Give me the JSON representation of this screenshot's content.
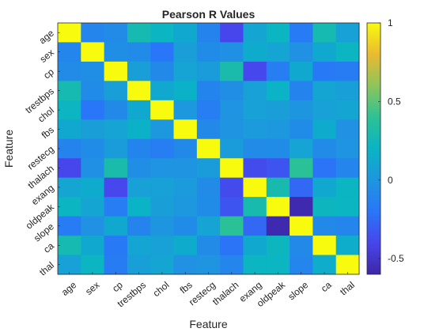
{
  "chart_data": {
    "type": "heatmap",
    "title": "Pearson R Values",
    "xlabel": "Feature",
    "ylabel": "Feature",
    "labels": [
      "age",
      "sex",
      "cp",
      "trestbps",
      "chol",
      "fbs",
      "restecg",
      "thalach",
      "exang",
      "oldpeak",
      "slope",
      "ca",
      "thal"
    ],
    "values": [
      [
        1.0,
        -0.1,
        -0.07,
        0.28,
        0.21,
        0.12,
        -0.12,
        -0.4,
        0.1,
        0.21,
        -0.17,
        0.28,
        0.07
      ],
      [
        -0.1,
        1.0,
        -0.05,
        -0.06,
        -0.2,
        0.05,
        -0.06,
        -0.04,
        0.14,
        0.1,
        -0.03,
        0.12,
        0.21
      ],
      [
        -0.07,
        -0.05,
        1.0,
        0.05,
        -0.08,
        0.09,
        0.04,
        0.3,
        -0.39,
        -0.15,
        0.12,
        -0.18,
        -0.16
      ],
      [
        0.28,
        -0.06,
        0.05,
        1.0,
        0.12,
        0.18,
        -0.11,
        -0.05,
        0.07,
        0.19,
        -0.12,
        0.1,
        0.06
      ],
      [
        0.21,
        -0.2,
        -0.08,
        0.12,
        1.0,
        0.01,
        -0.15,
        -0.01,
        0.07,
        0.05,
        -0.0,
        0.07,
        0.1
      ],
      [
        0.12,
        0.05,
        0.09,
        0.18,
        0.01,
        1.0,
        -0.08,
        -0.01,
        0.03,
        0.01,
        -0.06,
        0.14,
        -0.03
      ],
      [
        -0.12,
        -0.06,
        0.04,
        -0.11,
        -0.15,
        -0.08,
        1.0,
        0.04,
        -0.07,
        -0.06,
        0.09,
        -0.07,
        -0.01
      ],
      [
        -0.4,
        -0.04,
        0.3,
        -0.05,
        -0.01,
        -0.01,
        0.04,
        1.0,
        -0.38,
        -0.34,
        0.39,
        -0.21,
        -0.1
      ],
      [
        0.1,
        0.14,
        -0.39,
        0.07,
        0.07,
        0.03,
        -0.07,
        -0.38,
        1.0,
        0.29,
        -0.26,
        0.12,
        0.21
      ],
      [
        0.21,
        0.1,
        -0.15,
        0.19,
        0.05,
        0.01,
        -0.06,
        -0.34,
        0.29,
        1.0,
        -0.58,
        0.22,
        0.21
      ],
      [
        -0.17,
        -0.03,
        0.12,
        -0.12,
        -0.0,
        -0.06,
        0.09,
        0.39,
        -0.26,
        -0.58,
        1.0,
        -0.08,
        -0.1
      ],
      [
        0.28,
        0.12,
        -0.18,
        0.1,
        0.07,
        0.14,
        -0.07,
        -0.21,
        0.12,
        0.22,
        -0.08,
        1.0,
        0.15
      ],
      [
        0.07,
        0.21,
        -0.16,
        0.06,
        0.1,
        -0.03,
        -0.01,
        -0.1,
        0.21,
        0.21,
        -0.1,
        0.15,
        1.0
      ]
    ],
    "colormap": "parula",
    "clim": [
      -0.6,
      1.0
    ],
    "colorbar_ticks": [
      -0.5,
      0,
      0.5,
      1
    ]
  }
}
